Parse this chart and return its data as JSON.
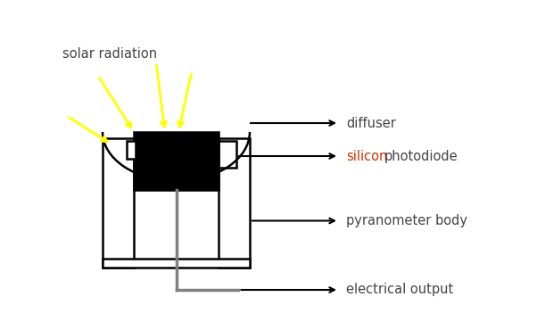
{
  "bg_color": "#ffffff",
  "line_color": "#000000",
  "gray_color": "#808080",
  "yellow_color": "#ffff00",
  "label_color": "#444444",
  "silicon_color": "#cc3300",
  "labels": {
    "solar_radiation": "solar radiation",
    "diffuser": "diffuser",
    "silicon_photodiode": "silicon photodiode",
    "silicon": "silicon",
    "photodiode": "photodiode",
    "pyranometer_body": "pyranometer body",
    "electrical_output": "electrical output"
  },
  "figsize": [
    6.11,
    3.7
  ],
  "dpi": 100
}
